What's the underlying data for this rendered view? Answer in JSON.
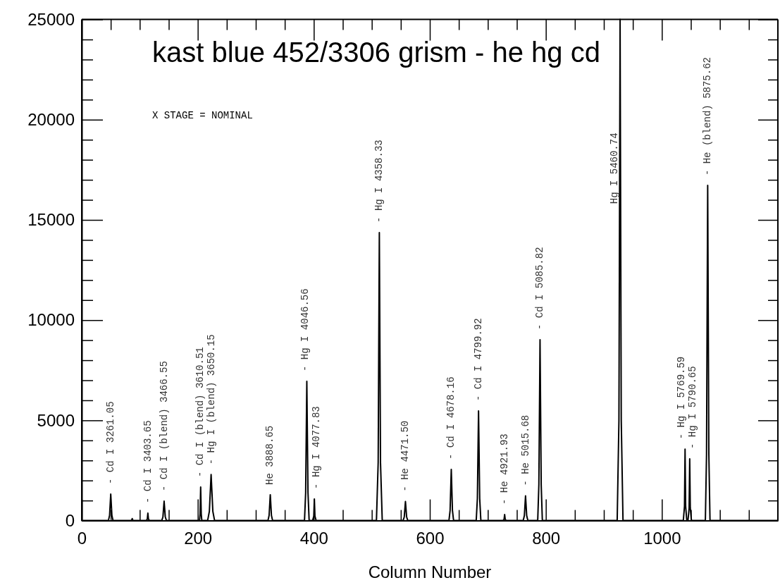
{
  "chart_data": {
    "type": "line",
    "title": "kast blue 452/3306 grism - he hg cd",
    "xlabel": "Column Number",
    "xlim": [
      0,
      1200
    ],
    "ylim": [
      0,
      25000
    ],
    "xticks": [
      0,
      {
        "value": 50,
        "label": null
      },
      {
        "value": 100,
        "label": null
      },
      {
        "value": 150,
        "label": null
      },
      200,
      {
        "value": 250,
        "label": null
      },
      {
        "value": 300,
        "label": null
      },
      {
        "value": 350,
        "label": null
      },
      400,
      {
        "value": 450,
        "label": null
      },
      {
        "value": 500,
        "label": null
      },
      {
        "value": 550,
        "label": null
      },
      600,
      {
        "value": 650,
        "label": null
      },
      {
        "value": 700,
        "label": null
      },
      {
        "value": 750,
        "label": null
      },
      800,
      {
        "value": 850,
        "label": null
      },
      {
        "value": 900,
        "label": null
      },
      {
        "value": 950,
        "label": null
      },
      1000,
      {
        "value": 1050,
        "label": null
      },
      {
        "value": 1100,
        "label": null
      },
      {
        "value": 1150,
        "label": null
      }
    ],
    "yticks": [
      0,
      {
        "value": 1000,
        "label": null
      },
      {
        "value": 2000,
        "label": null
      },
      {
        "value": 3000,
        "label": null
      },
      {
        "value": 4000,
        "label": null
      },
      5000,
      {
        "value": 6000,
        "label": null
      },
      {
        "value": 7000,
        "label": null
      },
      {
        "value": 8000,
        "label": null
      },
      {
        "value": 9000,
        "label": null
      },
      10000,
      {
        "value": 11000,
        "label": null
      },
      {
        "value": 12000,
        "label": null
      },
      {
        "value": 13000,
        "label": null
      },
      {
        "value": 14000,
        "label": null
      },
      15000,
      {
        "value": 16000,
        "label": null
      },
      {
        "value": 17000,
        "label": null
      },
      {
        "value": 18000,
        "label": null
      },
      {
        "value": 19000,
        "label": null
      },
      20000,
      {
        "value": 21000,
        "label": null
      },
      {
        "value": 22000,
        "label": null
      },
      {
        "value": 23000,
        "label": null
      },
      {
        "value": 24000,
        "label": null
      },
      25000
    ],
    "grid": false,
    "marker": "none",
    "line_style": "solid",
    "series": [
      {
        "color": "#000000",
        "x": [
          0,
          46,
          48,
          50,
          52,
          54,
          84,
          86,
          87,
          88,
          90,
          111,
          113,
          114,
          115,
          117,
          138,
          140,
          142,
          144,
          146,
          203,
          204,
          205,
          206,
          207,
          217,
          220,
          223,
          226,
          229,
          321,
          323,
          325,
          327,
          329,
          384,
          386,
          388,
          390,
          392,
          398,
          400,
          401,
          402,
          404,
          508,
          511,
          513,
          515,
          518,
          554,
          556,
          558,
          560,
          562,
          633,
          635,
          637,
          639,
          641,
          680,
          682,
          684,
          686,
          688,
          726,
          728,
          729,
          730,
          732,
          761,
          763,
          765,
          767,
          769,
          786,
          788,
          790,
          792,
          794,
          923,
          926,
          928,
          930,
          933,
          1037,
          1039,
          1040,
          1041,
          1043,
          1045,
          1047,
          1048,
          1049,
          1051,
          1075,
          1077,
          1079,
          1081,
          1083,
          1200
        ],
        "values": [
          0,
          0,
          260,
          1320,
          260,
          0,
          0,
          20,
          100,
          20,
          0,
          0,
          70,
          370,
          70,
          0,
          0,
          190,
          970,
          190,
          0,
          0,
          330,
          1670,
          330,
          0,
          0,
          460,
          2300,
          460,
          0,
          0,
          260,
          1290,
          260,
          0,
          0,
          1400,
          6950,
          1400,
          0,
          0,
          220,
          1080,
          220,
          0,
          0,
          2900,
          14370,
          2900,
          0,
          0,
          190,
          950,
          190,
          0,
          0,
          510,
          2550,
          510,
          0,
          0,
          1100,
          5470,
          1100,
          0,
          0,
          60,
          300,
          60,
          0,
          0,
          250,
          1230,
          250,
          0,
          0,
          1800,
          9020,
          1800,
          0,
          0,
          5000,
          25000,
          5000,
          0,
          0,
          710,
          3560,
          710,
          0,
          0,
          620,
          3080,
          620,
          0,
          0,
          3300,
          16720,
          3300,
          0,
          0
        ]
      }
    ],
    "annotations": [
      "X STAGE = NOMINAL",
      {
        "text": "- Cd I 3261.05",
        "x": 50,
        "y": 1320
      },
      {
        "text": "- Cd I 3403.65",
        "x": 114,
        "y": 370
      },
      {
        "text": "- Cd I (blend) 3466.55",
        "x": 142,
        "y": 970
      },
      {
        "text": "- Cd I (blend) 3610.51",
        "x": 205,
        "y": 1670
      },
      {
        "text": "- Hg I (blend) 3650.15",
        "x": 223,
        "y": 2300
      },
      {
        "text": "He 3888.65",
        "x": 325,
        "y": 1290
      },
      {
        "text": "- Hg I 4046.56",
        "x": 388,
        "y": 6950
      },
      {
        "text": "- Hg I 4077.83",
        "x": 401,
        "y": 1080
      },
      {
        "text": "- Hg I 4358.33",
        "x": 513,
        "y": 14370
      },
      {
        "text": "- He 4471.50",
        "x": 558,
        "y": 950
      },
      {
        "text": "- Cd I 4678.16",
        "x": 637,
        "y": 2550
      },
      {
        "text": "- Cd I 4799.92",
        "x": 684,
        "y": 5470
      },
      {
        "text": "- He 4921.93",
        "x": 729,
        "y": 300
      },
      {
        "text": "- He 5015.68",
        "x": 765,
        "y": 1230
      },
      {
        "text": "- Cd I 5085.82",
        "x": 790,
        "y": 9020
      },
      {
        "text": "Hg I 5460.74",
        "x": 928,
        "y": 15800
      },
      {
        "text": "- Hg I 5769.59",
        "x": 1040,
        "y": 3560
      },
      {
        "text": "- Hg I 5790.65",
        "x": 1048,
        "y": 3080
      },
      {
        "text": "- He (blend) 5875.62",
        "x": 1079,
        "y": 16720
      }
    ]
  }
}
